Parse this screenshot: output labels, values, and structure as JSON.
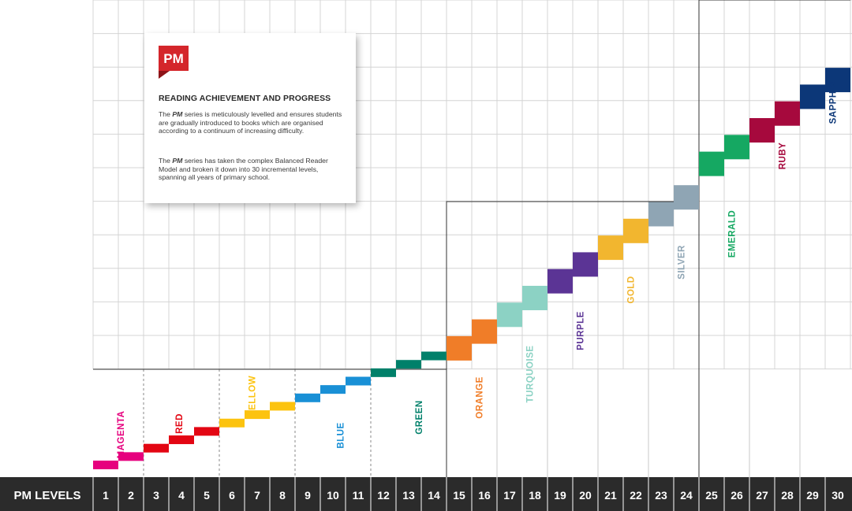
{
  "card": {
    "logo_text": "PM",
    "title": "READING ACHIEVEMENT AND PROGRESS",
    "para1": {
      "em": "PM",
      "rest": " series is meticulously levelled and ensures students are gradually introduced to books which are organised according to a continuum of increasing difficulty.",
      "prefix": "The "
    },
    "para2": {
      "em": "PM",
      "rest": " series has taken the complex Balanced Reader Model and broken it down into 30 incremental levels, spanning all years of primary school.",
      "prefix": "The "
    }
  },
  "colors": {
    "magenta": "#e6007e",
    "red": "#e30613",
    "yellow": "#fcc30f",
    "blue": "#1990d6",
    "green": "#00806a",
    "orange": "#f07d28",
    "turquoise": "#8cd2c4",
    "purple": "#5b3495",
    "gold": "#f2b62f",
    "silver": "#8fa5b4",
    "emerald": "#15a862",
    "ruby": "#a6093d",
    "sapphire": "#0c3778",
    "logo": "#d4262b"
  },
  "chart_data": {
    "type": "bar",
    "title": "READING ACHIEVEMENT AND PROGRESS",
    "xlabel": "PM LEVELS",
    "ylabel": "",
    "levels": [
      1,
      2,
      3,
      4,
      5,
      6,
      7,
      8,
      9,
      10,
      11,
      12,
      13,
      14,
      15,
      16,
      17,
      18,
      19,
      20,
      21,
      22,
      23,
      24,
      25,
      26,
      27,
      28,
      29,
      30
    ],
    "values": [
      1,
      1.5,
      2,
      2.5,
      3,
      3.5,
      4,
      4.5,
      5,
      5.5,
      6,
      6.5,
      7,
      7.5,
      8,
      9,
      10,
      11,
      12,
      13,
      14,
      15,
      16,
      17,
      19,
      20,
      21,
      22,
      23,
      24
    ],
    "ylim": [
      0,
      24
    ],
    "colour_bands": [
      {
        "name": "MAGENTA",
        "levels": [
          1,
          2
        ],
        "color": "#e6007e"
      },
      {
        "name": "RED",
        "levels": [
          3,
          4,
          5
        ],
        "color": "#e30613"
      },
      {
        "name": "YELLOW",
        "levels": [
          6,
          7,
          8
        ],
        "color": "#fcc30f"
      },
      {
        "name": "BLUE",
        "levels": [
          9,
          10,
          11
        ],
        "color": "#1990d6"
      },
      {
        "name": "GREEN",
        "levels": [
          12,
          13,
          14
        ],
        "color": "#00806a"
      },
      {
        "name": "ORANGE",
        "levels": [
          15,
          16
        ],
        "color": "#f07d28"
      },
      {
        "name": "TURQUOISE",
        "levels": [
          17,
          18
        ],
        "color": "#8cd2c4"
      },
      {
        "name": "PURPLE",
        "levels": [
          19,
          20
        ],
        "color": "#5b3495"
      },
      {
        "name": "GOLD",
        "levels": [
          21,
          22
        ],
        "color": "#f2b62f"
      },
      {
        "name": "SILVER",
        "levels": [
          23,
          24
        ],
        "color": "#8fa5b4"
      },
      {
        "name": "EMERALD",
        "levels": [
          25,
          26
        ],
        "color": "#15a862"
      },
      {
        "name": "RUBY",
        "levels": [
          27,
          28
        ],
        "color": "#a6093d"
      },
      {
        "name": "SAPPHIRE",
        "levels": [
          29,
          30
        ],
        "color": "#0c3778"
      }
    ]
  }
}
